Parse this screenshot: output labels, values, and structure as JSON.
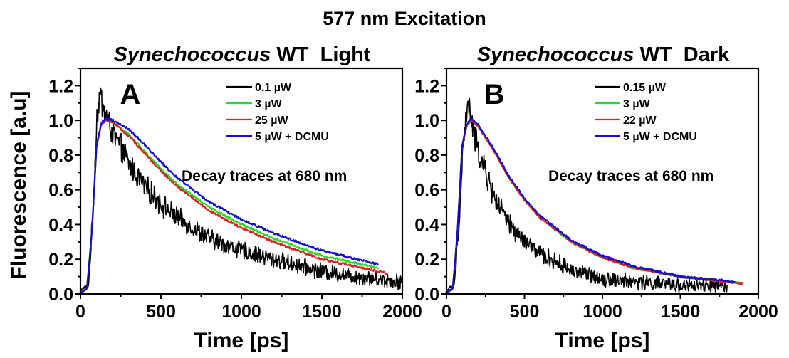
{
  "figure_title": "577 nm Excitation",
  "shared_ylabel": "Fluorescence [a.u]",
  "chart_data": [
    {
      "type": "line",
      "title_italic": "Synechococcus",
      "title_rest": " WT  Light",
      "panel_letter": "A",
      "annotation": "Decay traces at 680 nm",
      "xlabel": "Time [ps]",
      "ylabel": "Fluorescence [a.u]",
      "xlim": [
        0,
        2000
      ],
      "ylim": [
        0,
        1.3
      ],
      "xticks": [
        0,
        500,
        1000,
        1500,
        2000
      ],
      "xtick_labels": [
        "0",
        "500",
        "1000",
        "1500",
        "2000"
      ],
      "yticks": [
        0.0,
        0.2,
        0.4,
        0.6,
        0.8,
        1.0,
        1.2
      ],
      "ytick_labels": [
        "0.0",
        "0.2",
        "0.4",
        "0.6",
        "0.8",
        "1.0",
        "1.2"
      ],
      "legend_position": "top-right",
      "series": [
        {
          "name": "0.1 µW",
          "color": "#000000",
          "noisy": true,
          "x": [
            0,
            50,
            80,
            100,
            120,
            150,
            200,
            300,
            400,
            500,
            600,
            800,
            1000,
            1200,
            1500,
            1800,
            2000
          ],
          "y": [
            0.02,
            0.05,
            0.5,
            1.0,
            1.15,
            1.05,
            0.93,
            0.75,
            0.62,
            0.52,
            0.44,
            0.32,
            0.25,
            0.2,
            0.13,
            0.09,
            0.07
          ]
        },
        {
          "name": "3 µW",
          "color": "#22dd22",
          "noisy": false,
          "x": [
            0,
            40,
            70,
            100,
            130,
            160,
            200,
            300,
            400,
            500,
            600,
            800,
            1000,
            1200,
            1500,
            1850
          ],
          "y": [
            0.01,
            0.03,
            0.35,
            0.85,
            0.98,
            1.0,
            0.99,
            0.92,
            0.82,
            0.72,
            0.63,
            0.5,
            0.4,
            0.32,
            0.22,
            0.15
          ]
        },
        {
          "name": "25 µW",
          "color": "#e02020",
          "noisy": false,
          "x": [
            0,
            40,
            70,
            100,
            130,
            160,
            200,
            300,
            400,
            500,
            600,
            800,
            1000,
            1200,
            1500,
            1900
          ],
          "y": [
            0.01,
            0.03,
            0.35,
            0.85,
            0.98,
            1.0,
            0.99,
            0.91,
            0.81,
            0.71,
            0.62,
            0.48,
            0.38,
            0.3,
            0.2,
            0.12
          ]
        },
        {
          "name": "5 µW + DCMU",
          "color": "#1010cc",
          "noisy": false,
          "x": [
            0,
            40,
            70,
            100,
            130,
            160,
            200,
            300,
            400,
            500,
            600,
            800,
            1000,
            1200,
            1500,
            1850
          ],
          "y": [
            0.01,
            0.03,
            0.35,
            0.85,
            0.99,
            1.01,
            1.0,
            0.95,
            0.86,
            0.76,
            0.67,
            0.53,
            0.43,
            0.35,
            0.25,
            0.17
          ]
        }
      ]
    },
    {
      "type": "line",
      "title_italic": "Synechococcus",
      "title_rest": " WT  Dark",
      "panel_letter": "B",
      "annotation": "Decay traces at 680 nm",
      "xlabel": "Time [ps]",
      "ylabel": "",
      "xlim": [
        0,
        2000
      ],
      "ylim": [
        0,
        1.3
      ],
      "xticks": [
        0,
        500,
        1000,
        1500,
        2000
      ],
      "xtick_labels": [
        "0",
        "500",
        "1000",
        "1500",
        "2000"
      ],
      "yticks": [
        0.0,
        0.2,
        0.4,
        0.6,
        0.8,
        1.0,
        1.2
      ],
      "ytick_labels": [
        "0.0",
        "0.2",
        "0.4",
        "0.6",
        "0.8",
        "1.0",
        "1.2"
      ],
      "legend_position": "top-right",
      "series": [
        {
          "name": "0.15 µW",
          "color": "#000000",
          "noisy": true,
          "x": [
            0,
            50,
            80,
            110,
            140,
            170,
            200,
            300,
            400,
            500,
            600,
            800,
            1000,
            1200,
            1500,
            1800
          ],
          "y": [
            0.02,
            0.05,
            0.4,
            0.9,
            1.1,
            0.95,
            0.83,
            0.57,
            0.4,
            0.3,
            0.23,
            0.14,
            0.09,
            0.07,
            0.05,
            0.04
          ]
        },
        {
          "name": "3 µW",
          "color": "#22dd22",
          "noisy": false,
          "x": [
            0,
            40,
            70,
            100,
            130,
            160,
            200,
            300,
            400,
            500,
            600,
            800,
            1000,
            1200,
            1500,
            1900
          ],
          "y": [
            0.01,
            0.03,
            0.35,
            0.85,
            0.97,
            1.0,
            0.97,
            0.83,
            0.67,
            0.54,
            0.44,
            0.3,
            0.21,
            0.15,
            0.1,
            0.06
          ]
        },
        {
          "name": "22 µW",
          "color": "#e02020",
          "noisy": false,
          "x": [
            0,
            40,
            70,
            100,
            130,
            160,
            200,
            300,
            400,
            500,
            600,
            800,
            1000,
            1200,
            1500,
            1900
          ],
          "y": [
            0.01,
            0.03,
            0.35,
            0.85,
            0.97,
            1.0,
            0.97,
            0.83,
            0.67,
            0.54,
            0.44,
            0.3,
            0.21,
            0.15,
            0.1,
            0.06
          ]
        },
        {
          "name": "5 µW + DCMU",
          "color": "#1010cc",
          "noisy": false,
          "x": [
            0,
            40,
            70,
            100,
            130,
            160,
            200,
            300,
            400,
            500,
            600,
            800,
            1000,
            1200,
            1500,
            1850
          ],
          "y": [
            0.01,
            0.03,
            0.35,
            0.85,
            0.98,
            1.01,
            0.98,
            0.84,
            0.68,
            0.55,
            0.45,
            0.31,
            0.22,
            0.16,
            0.1,
            0.07
          ]
        }
      ]
    }
  ]
}
